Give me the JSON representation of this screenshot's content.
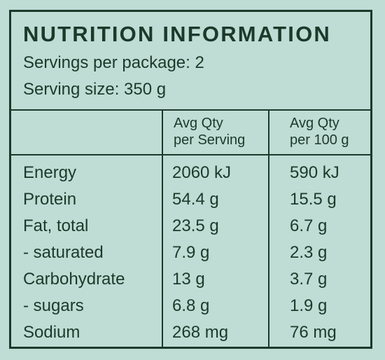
{
  "title": "NUTRITION INFORMATION",
  "servings_per_package": "Servings per package: 2",
  "serving_size": "Serving size: 350 g",
  "columns": {
    "per_serving": [
      "Avg Qty",
      "per Serving"
    ],
    "per_100g": [
      "Avg Qty",
      "per 100 g"
    ]
  },
  "rows": [
    {
      "name": "Energy",
      "per_serving": "2060 kJ",
      "per_100g": "590 kJ"
    },
    {
      "name": "Protein",
      "per_serving": "54.4 g",
      "per_100g": "15.5 g"
    },
    {
      "name": "Fat, total",
      "per_serving": "23.5 g",
      "per_100g": "6.7 g"
    },
    {
      "name": "- saturated",
      "per_serving": "7.9 g",
      "per_100g": "2.3 g"
    },
    {
      "name": "Carbohydrate",
      "per_serving": "13 g",
      "per_100g": "3.7 g"
    },
    {
      "name": "- sugars",
      "per_serving": "6.8 g",
      "per_100g": "1.9 g"
    },
    {
      "name": "Sodium",
      "per_serving": "268 mg",
      "per_100g": "76 mg"
    }
  ],
  "colors": {
    "background": "#bfdcd5",
    "ink": "#1c3a2a"
  }
}
